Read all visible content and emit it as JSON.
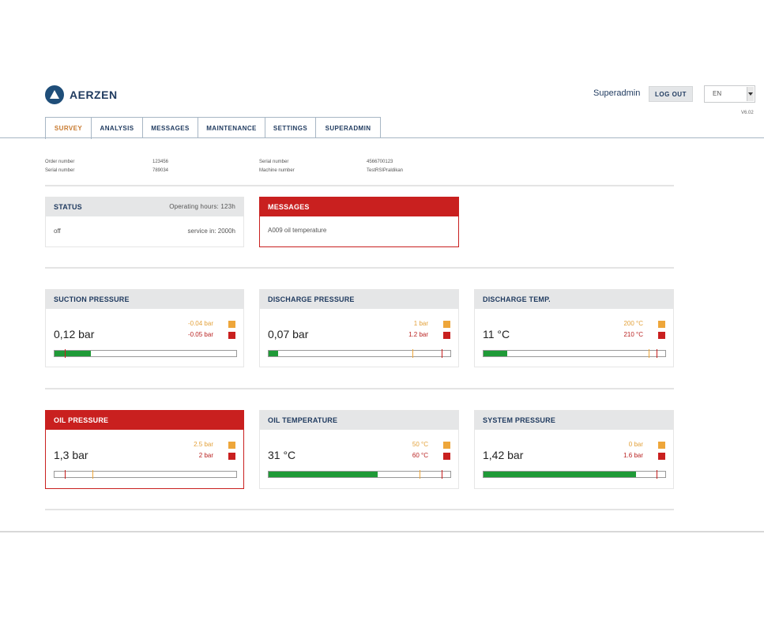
{
  "brand": {
    "name": "AERZEN"
  },
  "header": {
    "user": "Superadmin",
    "logout_label": "LOG OUT",
    "language": "EN",
    "version": "V6.02"
  },
  "tabs": [
    {
      "label": "SURVEY",
      "active": true
    },
    {
      "label": "ANALYSIS",
      "active": false
    },
    {
      "label": "MESSAGES",
      "active": false
    },
    {
      "label": "MAINTENANCE",
      "active": false
    },
    {
      "label": "SETTINGS",
      "active": false
    },
    {
      "label": "SUPERADMIN",
      "active": false
    }
  ],
  "info": {
    "order_number_label": "Order number",
    "order_number": "123456",
    "serial_number_label": "Serial number",
    "serial_number": "789034",
    "serial_number2_label": "Serial number",
    "serial_number2": "4566700123",
    "machine_number_label": "Machine number",
    "machine_number": "TestRSIPraldikan"
  },
  "status": {
    "title": "STATUS",
    "operating_hours": "Operating hours:   123h",
    "state": "off",
    "service_in": "service in:  2000h"
  },
  "messages": {
    "title": "MESSAGES",
    "text": "A009 oil temperature"
  },
  "gauges": [
    {
      "title": "SUCTION PRESSURE",
      "value": "0,12 bar",
      "warn": "-0.04 bar",
      "crit": "-0.05 bar",
      "fill": 0.2,
      "warn_pos": 0.055,
      "crit_pos": 0.055,
      "alert": false
    },
    {
      "title": "DISCHARGE PRESSURE",
      "value": "0,07 bar",
      "warn": "1 bar",
      "crit": "1.2 bar",
      "fill": 0.05,
      "warn_pos": 0.79,
      "crit_pos": 0.95,
      "alert": false
    },
    {
      "title": "DISCHARGE TEMP.",
      "value": "11 °C",
      "warn": "200 °C",
      "crit": "210 °C",
      "fill": 0.13,
      "warn_pos": 0.91,
      "crit_pos": 0.95,
      "alert": false
    },
    {
      "title": "OIL PRESSURE",
      "value": "1,3 bar",
      "warn": "2.5 bar",
      "crit": "2 bar",
      "fill": 0.0,
      "warn_pos": 0.21,
      "crit_pos": 0.055,
      "alert": true
    },
    {
      "title": "OIL TEMPERATURE",
      "value": "31 °C",
      "warn": "50 °C",
      "crit": "60 °C",
      "fill": 0.6,
      "warn_pos": 0.83,
      "crit_pos": 0.95,
      "alert": false
    },
    {
      "title": "SYSTEM PRESSURE",
      "value": "1,42 bar",
      "warn": "0 bar",
      "crit": "1.6 bar",
      "fill": 0.84,
      "warn_pos": 0.95,
      "crit_pos": 0.95,
      "alert": false
    }
  ],
  "colors": {
    "brand_blue": "#1f3a5f",
    "alert_red": "#c9201f",
    "warning_orange": "#eea63a",
    "ok_green": "#1f9a37",
    "active_tab": "#c8792e"
  }
}
